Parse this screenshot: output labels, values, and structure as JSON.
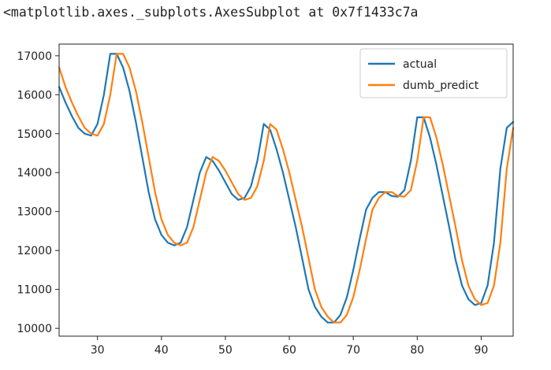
{
  "output_repr": "<matplotlib.axes._subplots.AxesSubplot at 0x7f1433c7a",
  "chart_data": {
    "type": "line",
    "title": "",
    "xlabel": "",
    "ylabel": "",
    "xlim": [
      24,
      95
    ],
    "ylim": [
      9800,
      17300
    ],
    "xticks": [
      30,
      40,
      50,
      60,
      70,
      80,
      90
    ],
    "yticks": [
      10000,
      11000,
      12000,
      13000,
      14000,
      15000,
      16000,
      17000
    ],
    "grid": false,
    "legend_position": "top-right",
    "x": [
      24,
      25,
      26,
      27,
      28,
      29,
      30,
      31,
      32,
      33,
      34,
      35,
      36,
      37,
      38,
      39,
      40,
      41,
      42,
      43,
      44,
      45,
      46,
      47,
      48,
      49,
      50,
      51,
      52,
      53,
      54,
      55,
      56,
      57,
      58,
      59,
      60,
      61,
      62,
      63,
      64,
      65,
      66,
      67,
      68,
      69,
      70,
      71,
      72,
      73,
      74,
      75,
      76,
      77,
      78,
      79,
      80,
      81,
      82,
      83,
      84,
      85,
      86,
      87,
      88,
      89,
      90,
      91,
      92,
      93,
      94,
      95
    ],
    "series": [
      {
        "name": "actual",
        "color": "#1f77b4",
        "values": [
          16200,
          15800,
          15450,
          15150,
          15000,
          14950,
          15250,
          16000,
          17050,
          17050,
          16700,
          16100,
          15300,
          14400,
          13500,
          12800,
          12400,
          12200,
          12130,
          12200,
          12600,
          13300,
          14000,
          14400,
          14300,
          14050,
          13750,
          13450,
          13300,
          13350,
          13650,
          14300,
          15250,
          15100,
          14600,
          14000,
          13300,
          12600,
          11800,
          11000,
          10550,
          10300,
          10150,
          10150,
          10350,
          10800,
          11500,
          12300,
          13050,
          13350,
          13500,
          13500,
          13400,
          13380,
          13550,
          14300,
          15420,
          15420,
          14900,
          14200,
          13400,
          12600,
          11750,
          11100,
          10750,
          10600,
          10650,
          11100,
          12200,
          14100,
          15150,
          15300
        ]
      },
      {
        "name": "dumb_predict",
        "color": "#ff7f0e",
        "values": [
          16700,
          16200,
          15800,
          15450,
          15150,
          15000,
          14950,
          15250,
          16000,
          17050,
          17050,
          16700,
          16100,
          15300,
          14400,
          13500,
          12800,
          12400,
          12200,
          12130,
          12200,
          12600,
          13300,
          14000,
          14400,
          14300,
          14050,
          13750,
          13450,
          13300,
          13350,
          13650,
          14300,
          15250,
          15100,
          14600,
          14000,
          13300,
          12600,
          11800,
          11000,
          10550,
          10300,
          10150,
          10150,
          10350,
          10800,
          11500,
          12300,
          13050,
          13350,
          13500,
          13500,
          13400,
          13380,
          13550,
          14300,
          15420,
          15420,
          14900,
          14200,
          13400,
          12600,
          11750,
          11100,
          10750,
          10600,
          10650,
          11100,
          12200,
          14100,
          15150
        ]
      }
    ]
  }
}
